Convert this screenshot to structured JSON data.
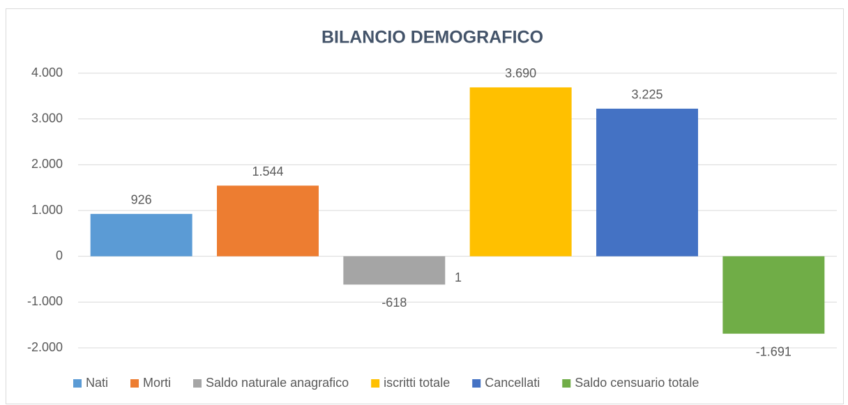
{
  "chart_data": {
    "type": "bar",
    "title": "BILANCIO DEMOGRAFICO",
    "series": [
      {
        "name": "Nati",
        "color": "#5b9bd5",
        "values": [
          926
        ],
        "value_labels": [
          "926"
        ]
      },
      {
        "name": "Morti",
        "color": "#ed7d31",
        "values": [
          1544
        ],
        "value_labels": [
          "1.544"
        ]
      },
      {
        "name": "Saldo naturale anagrafico",
        "color": "#a5a5a5",
        "values": [
          -618
        ],
        "value_labels": [
          "-618"
        ]
      },
      {
        "name": "iscritti totale",
        "color": "#ffc000",
        "values": [
          3690
        ],
        "value_labels": [
          "3.690"
        ]
      },
      {
        "name": "Cancellati",
        "color": "#4472c4",
        "values": [
          3225
        ],
        "value_labels": [
          "3.225"
        ]
      },
      {
        "name": "Saldo censuario totale",
        "color": "#70ad47",
        "values": [
          -1691
        ],
        "value_labels": [
          "-1.691"
        ]
      }
    ],
    "annotation": "1",
    "ylim": [
      -2000,
      4000
    ],
    "yticks": [
      {
        "value": -2000,
        "label": "-2.000"
      },
      {
        "value": -1000,
        "label": "-1.000"
      },
      0,
      {
        "value": 1000,
        "label": "1.000"
      },
      {
        "value": 2000,
        "label": "2.000"
      },
      {
        "value": 3000,
        "label": "3.000"
      },
      {
        "value": 4000,
        "label": "4.000"
      }
    ],
    "grid": true,
    "legend": "bottom"
  }
}
